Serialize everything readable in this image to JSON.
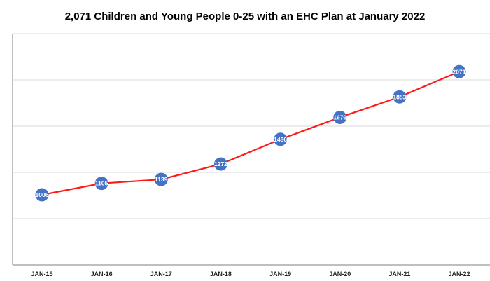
{
  "chart_data": {
    "type": "line",
    "title": "2,071 Children and Young People 0-25 with an EHC Plan at January 2022",
    "xlabel": "",
    "ylabel": "",
    "categories": [
      "JAN-15",
      "JAN-16",
      "JAN-17",
      "JAN-18",
      "JAN-19",
      "JAN-20",
      "JAN-21",
      "JAN-22"
    ],
    "series": [
      {
        "values": [
          1006,
          1105,
          1139,
          1272,
          1486,
          1676,
          1853,
          2071
        ],
        "data_labels": [
          "1006",
          "1105",
          "1139",
          "1272",
          "1486",
          "1676",
          "1853",
          "2071"
        ]
      }
    ],
    "ylim": [
      400,
      2400
    ],
    "grid": true,
    "y_tick_labels_visible": false,
    "legend": "none",
    "colors": {
      "line": "#ff1a1a",
      "marker": "#4472c4",
      "marker_label": "#ffffff",
      "grid": "#d9d9d9",
      "axis": "#7f7f7f"
    }
  }
}
